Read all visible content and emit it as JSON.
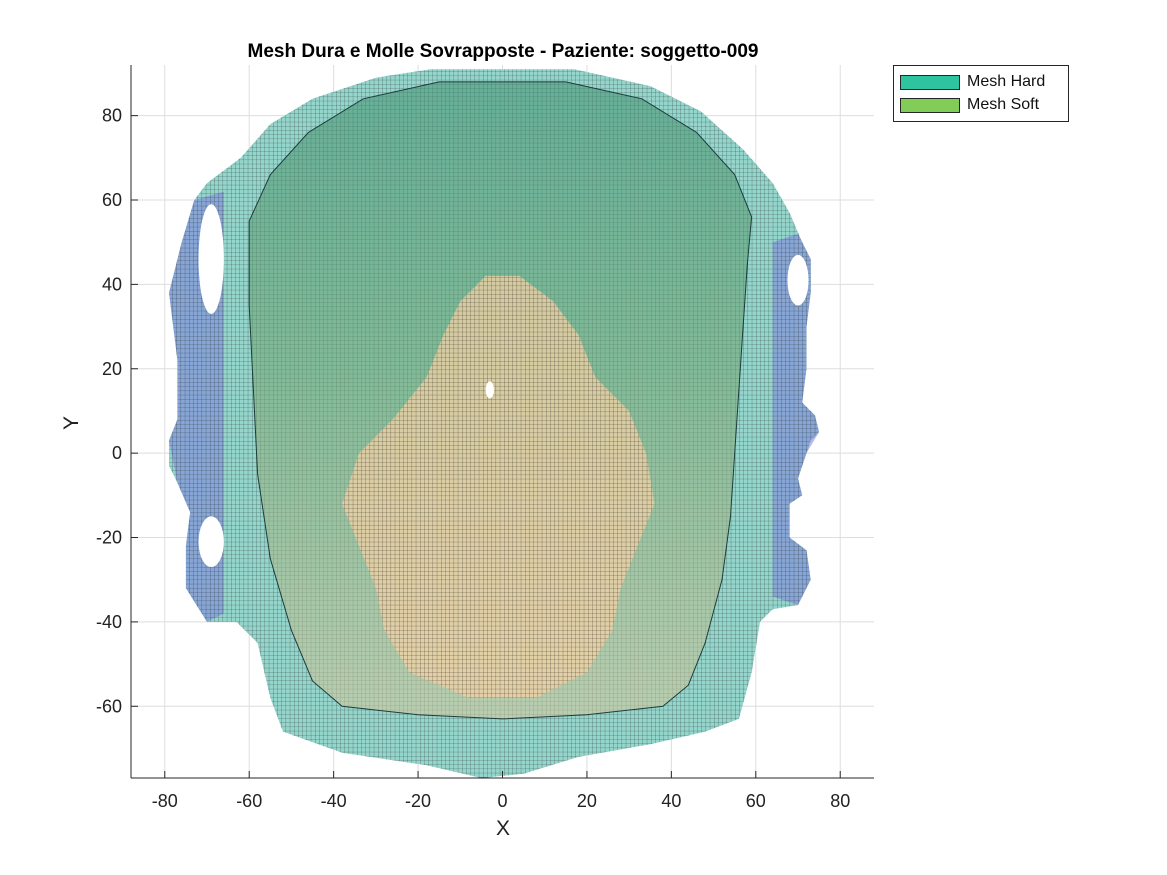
{
  "chart_data": {
    "type": "scatter",
    "subtype": "overlaid surface meshes (top view)",
    "title": "Mesh Dura e Molle Sovrapposte - Paziente: soggetto-009",
    "xlabel": "X",
    "ylabel": "Y",
    "xlim": [
      -88,
      88
    ],
    "ylim": [
      -77,
      92
    ],
    "xticks": [
      -80,
      -60,
      -40,
      -20,
      0,
      20,
      40,
      60,
      80
    ],
    "yticks": [
      -60,
      -40,
      -20,
      0,
      20,
      40,
      60,
      80
    ],
    "grid": true,
    "legend_position": "outside-top-right",
    "series": [
      {
        "name": "Mesh Hard",
        "color": "#2ec4a0"
      },
      {
        "name": "Mesh Soft",
        "color": "#82cd58"
      }
    ],
    "outer_mesh_extent": {
      "x": [
        -80,
        77
      ],
      "y": [
        -77,
        92
      ]
    },
    "colormap": [
      "#7b7fdd",
      "#8fd4c9",
      "#b7e8c4",
      "#f1d3a8",
      "#e8c9b0"
    ]
  }
}
